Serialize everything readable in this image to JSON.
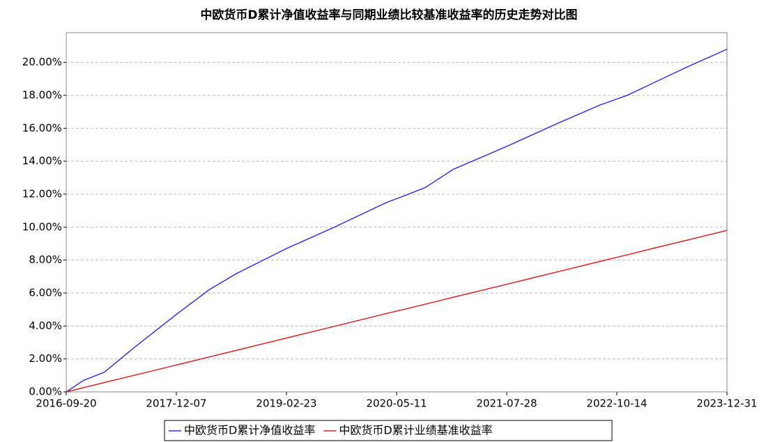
{
  "chart_data": {
    "type": "line",
    "title": "中欧货币D累计净值收益率与同期业绩比较基准收益率的历史走势对比图",
    "x": [
      "2016-09-20",
      "2016-11-29",
      "2017-02-21",
      "2017-06-13",
      "2017-12-07",
      "2018-04-18",
      "2018-08-08",
      "2019-02-23",
      "2019-09-04",
      "2020-04-01",
      "2020-06-11",
      "2020-09-03",
      "2020-12-24",
      "2021-07-28",
      "2022-02-18",
      "2022-08-05",
      "2022-11-25",
      "2023-03-17",
      "2023-07-21",
      "2023-12-31"
    ],
    "series": [
      {
        "name": "中欧货币D累计净值收益率",
        "color": "#3333ee",
        "values": [
          0,
          0.7,
          1.2,
          2.6,
          4.7,
          6.2,
          7.2,
          8.7,
          10.0,
          11.5,
          11.9,
          12.4,
          13.5,
          14.9,
          16.3,
          17.4,
          18.0,
          18.8,
          19.7,
          20.8
        ]
      },
      {
        "name": "中欧货币D累计业绩基准收益率",
        "color": "#e02020",
        "values": [
          0,
          0.26,
          0.57,
          0.98,
          1.63,
          2.12,
          2.53,
          3.27,
          3.98,
          4.76,
          5.01,
          5.32,
          5.74,
          6.53,
          7.29,
          7.91,
          8.32,
          8.74,
          9.2,
          9.8
        ]
      }
    ],
    "xlim": [
      "2016-09-20",
      "2023-12-31"
    ],
    "xticks": [
      "2016-09-20",
      "2017-12-07",
      "2019-02-23",
      "2020-05-11",
      "2021-07-28",
      "2022-10-14",
      "2023-12-31"
    ],
    "ylim": [
      0,
      21.8
    ],
    "yticks": [
      {
        "value": 0,
        "label": "0.00%"
      },
      {
        "value": 2,
        "label": "2.00%"
      },
      {
        "value": 4,
        "label": "4.00%"
      },
      {
        "value": 6,
        "label": "6.00%"
      },
      {
        "value": 8,
        "label": "8.00%"
      },
      {
        "value": 10,
        "label": "10.00%"
      },
      {
        "value": 12,
        "label": "12.00%"
      },
      {
        "value": 14,
        "label": "14.00%"
      },
      {
        "value": 16,
        "label": "16.00%"
      },
      {
        "value": 18,
        "label": "18.00%"
      },
      {
        "value": 20,
        "label": "20.00%"
      }
    ],
    "grid": true
  }
}
